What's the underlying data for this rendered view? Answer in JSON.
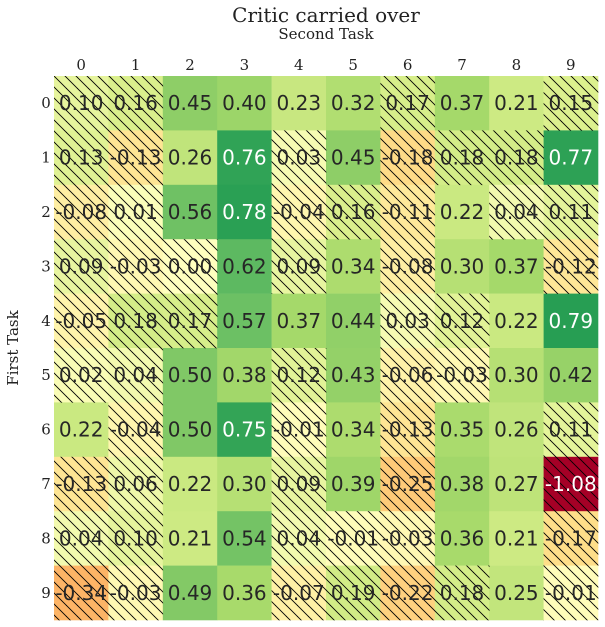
{
  "chart_data": {
    "type": "heatmap",
    "title": "Critic carried over",
    "xlabel": "Second Task",
    "ylabel": "First Task",
    "x_ticks": [
      "0",
      "1",
      "2",
      "3",
      "4",
      "5",
      "6",
      "7",
      "8",
      "9"
    ],
    "y_ticks": [
      "0",
      "1",
      "2",
      "3",
      "4",
      "5",
      "6",
      "7",
      "8",
      "9"
    ],
    "x_axis_position": "top",
    "colormap": "RdYlGn",
    "color_range": [
      -1.08,
      0.79
    ],
    "hatch": "diagonal lines on cells with value below 0.2",
    "values": [
      [
        0.1,
        0.16,
        0.45,
        0.4,
        0.23,
        0.32,
        0.17,
        0.37,
        0.21,
        0.15
      ],
      [
        0.13,
        -0.13,
        0.26,
        0.76,
        0.03,
        0.45,
        -0.18,
        0.18,
        0.18,
        0.77
      ],
      [
        -0.08,
        0.01,
        0.56,
        0.78,
        -0.04,
        0.16,
        -0.11,
        0.22,
        0.04,
        0.11
      ],
      [
        0.09,
        -0.03,
        0.0,
        0.62,
        0.09,
        0.34,
        -0.08,
        0.3,
        0.37,
        -0.12
      ],
      [
        -0.05,
        0.18,
        0.17,
        0.57,
        0.37,
        0.44,
        0.03,
        0.12,
        0.22,
        0.79
      ],
      [
        0.02,
        0.04,
        0.5,
        0.38,
        0.12,
        0.43,
        -0.06,
        -0.03,
        0.3,
        0.42
      ],
      [
        0.22,
        -0.04,
        0.5,
        0.75,
        -0.01,
        0.34,
        -0.13,
        0.35,
        0.26,
        0.11
      ],
      [
        -0.13,
        0.06,
        0.22,
        0.3,
        0.09,
        0.39,
        -0.25,
        0.38,
        0.27,
        -1.08
      ],
      [
        0.04,
        0.1,
        0.21,
        0.54,
        0.04,
        -0.01,
        -0.03,
        0.36,
        0.21,
        -0.17
      ],
      [
        -0.34,
        -0.03,
        0.49,
        0.36,
        -0.07,
        0.19,
        -0.22,
        0.18,
        0.25,
        -0.01
      ]
    ],
    "labels": [
      [
        "0.10",
        "0.16",
        "0.45",
        "0.40",
        "0.23",
        "0.32",
        "0.17",
        "0.37",
        "0.21",
        "0.15"
      ],
      [
        "0.13",
        "-0.13",
        "0.26",
        "0.76",
        "0.03",
        "0.45",
        "-0.18",
        "0.18",
        "0.18",
        "0.77"
      ],
      [
        "-0.08",
        "0.01",
        "0.56",
        "0.78",
        "-0.04",
        "0.16",
        "-0.11",
        "0.22",
        "0.04",
        "0.11"
      ],
      [
        "0.09",
        "-0.03",
        "0.00",
        "0.62",
        "0.09",
        "0.34",
        "-0.08",
        "0.30",
        "0.37",
        "-0.12"
      ],
      [
        "-0.05",
        "0.18",
        "0.17",
        "0.57",
        "0.37",
        "0.44",
        "0.03",
        "0.12",
        "0.22",
        "0.79"
      ],
      [
        "0.02",
        "0.04",
        "0.50",
        "0.38",
        "0.12",
        "0.43",
        "-0.06",
        "-0.03",
        "0.30",
        "0.42"
      ],
      [
        "0.22",
        "-0.04",
        "0.50",
        "0.75",
        "-0.01",
        "0.34",
        "-0.13",
        "0.35",
        "0.26",
        "0.11"
      ],
      [
        "-0.13",
        "0.06",
        "0.22",
        "0.30",
        "0.09",
        "0.39",
        "-0.25",
        "0.38",
        "0.27",
        "-1.08"
      ],
      [
        "0.04",
        "0.10",
        "0.21",
        "0.54",
        "0.04",
        "-0.01",
        "-0.03",
        "0.36",
        "0.21",
        "-0.17"
      ],
      [
        "-0.34",
        "-0.03",
        "0.49",
        "0.36",
        "-0.07",
        "0.19",
        "-0.22",
        "0.18",
        "0.25",
        "-0.01"
      ]
    ]
  }
}
